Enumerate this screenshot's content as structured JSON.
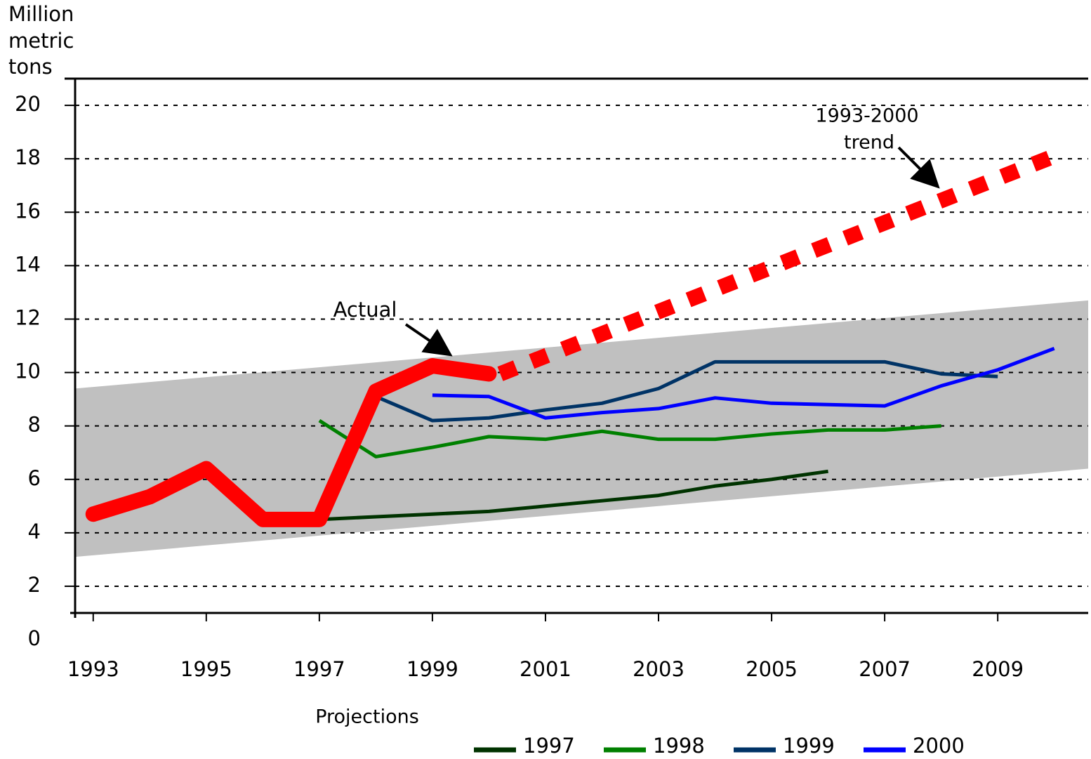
{
  "chart_data": {
    "type": "line",
    "y_label": [
      "Million",
      "metric",
      "tons"
    ],
    "xlim": [
      1992.68,
      2010.6
    ],
    "ylim": [
      1,
      21
    ],
    "xticks": [
      1993,
      1995,
      1997,
      1999,
      2001,
      2003,
      2005,
      2007,
      2009
    ],
    "yticks": [
      0,
      2,
      4,
      6,
      8,
      10,
      12,
      14,
      16,
      18,
      20
    ],
    "grid": true,
    "band": {
      "x": [
        1992.68,
        2010.6
      ],
      "lower": [
        3.1,
        6.4
      ],
      "upper": [
        9.4,
        12.7
      ],
      "color": "#c0c0c0"
    },
    "actual": {
      "name": "Actual",
      "color": "#ff0000",
      "x": [
        1993,
        1994,
        1995,
        1996,
        1997,
        1998,
        1999,
        2000
      ],
      "values": [
        4.7,
        5.35,
        6.4,
        4.5,
        4.5,
        9.3,
        10.25,
        9.95
      ]
    },
    "trend": {
      "name": [
        "1993-2000",
        "trend"
      ],
      "color": "#ff0000",
      "x": [
        2000.2,
        2010
      ],
      "values": [
        9.95,
        18.1
      ]
    },
    "legend_title": "Projections",
    "series": [
      {
        "name": "1997",
        "color": "#003300",
        "x": [
          1997,
          1998,
          1999,
          2000,
          2001,
          2002,
          2003,
          2004,
          2005,
          2006
        ],
        "values": [
          4.5,
          4.6,
          4.7,
          4.8,
          5.0,
          5.2,
          5.4,
          5.75,
          6.0,
          6.3
        ]
      },
      {
        "name": "1998",
        "color": "#008000",
        "x": [
          1997,
          1998,
          1999,
          2000,
          2001,
          2002,
          2003,
          2004,
          2005,
          2006,
          2007,
          2008
        ],
        "values": [
          8.2,
          6.85,
          7.2,
          7.6,
          7.5,
          7.8,
          7.5,
          7.5,
          7.7,
          7.85,
          7.85,
          8.0
        ]
      },
      {
        "name": "1999",
        "color": "#003366",
        "x": [
          1998,
          1999,
          2000,
          2001,
          2002,
          2003,
          2004,
          2005,
          2006,
          2007,
          2008,
          2009
        ],
        "values": [
          9.1,
          8.2,
          8.3,
          8.6,
          8.85,
          9.4,
          10.4,
          10.4,
          10.4,
          10.4,
          9.95,
          9.85
        ]
      },
      {
        "name": "2000",
        "color": "#0000ff",
        "x": [
          1999,
          2000,
          2001,
          2002,
          2003,
          2004,
          2005,
          2006,
          2007,
          2008,
          2009,
          2010
        ],
        "values": [
          9.15,
          9.1,
          8.3,
          8.5,
          8.65,
          9.05,
          8.85,
          8.8,
          8.75,
          9.5,
          10.1,
          10.9
        ]
      }
    ]
  }
}
